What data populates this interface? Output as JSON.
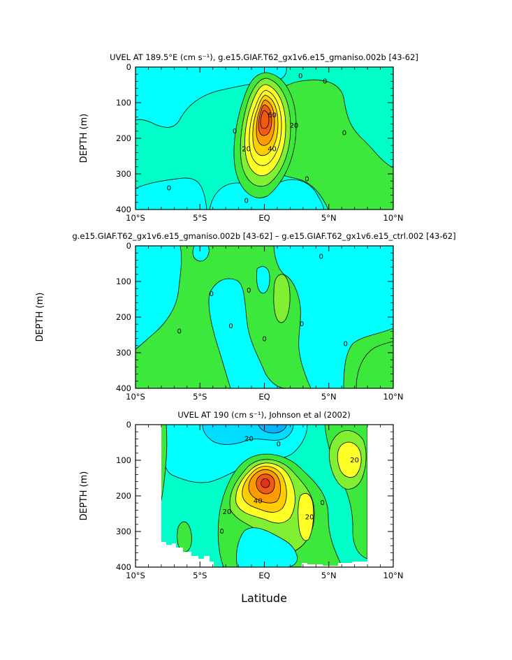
{
  "chart_data": [
    {
      "type": "contour",
      "title": "UVEL AT 189.5°E (cm s⁻¹), g.e15.GIAF.T62_gx1v6.e15_gmaniso.002b [43-62]",
      "ylabel": "DEPTH (m)",
      "xlabel": "",
      "xlim": [
        -10,
        10
      ],
      "ylim": [
        400,
        0
      ],
      "x_ticks": [
        -10,
        -5,
        0,
        5,
        10
      ],
      "x_tick_labels": [
        "10°S",
        "5°S",
        "EQ",
        "5°N",
        "10°N"
      ],
      "y_ticks": [
        0,
        100,
        200,
        300,
        400
      ],
      "y_tick_labels": [
        "0",
        "100",
        "200",
        "300",
        "400"
      ],
      "contour_labels": [
        {
          "text": "0",
          "lat": 2.8,
          "depth": 25
        },
        {
          "text": "0",
          "lat": 4.7,
          "depth": 40
        },
        {
          "text": "0",
          "lat": -2.3,
          "depth": 180
        },
        {
          "text": "0",
          "lat": 6.2,
          "depth": 185
        },
        {
          "text": "0",
          "lat": -7.4,
          "depth": 340
        },
        {
          "text": "0",
          "lat": 3.3,
          "depth": 315
        },
        {
          "text": "0",
          "lat": -1.4,
          "depth": 375
        },
        {
          "text": "60",
          "lat": 0.6,
          "depth": 135
        },
        {
          "text": "20",
          "lat": 2.3,
          "depth": 165
        },
        {
          "text": "20",
          "lat": -1.4,
          "depth": 230
        },
        {
          "text": "40",
          "lat": 0.6,
          "depth": 230
        }
      ],
      "colors": {
        "c1": "#00ffff",
        "c2": "#00ffc8",
        "c3": "#3ce83c",
        "c4": "#82f032",
        "c5": "#ffff28",
        "c6": "#ffcd00",
        "c7": "#ff9b00",
        "c8": "#f05a14"
      }
    },
    {
      "type": "contour",
      "title": "g.e15.GIAF.T62_gx1v6.e15_gmaniso.002b [43-62] – g.e15.GIAF.T62_gx1v6.e15_ctrl.002 [43-62]",
      "ylabel": "DEPTH (m)",
      "xlabel": "",
      "xlim": [
        -10,
        10
      ],
      "ylim": [
        400,
        0
      ],
      "x_ticks": [
        -10,
        -5,
        0,
        5,
        10
      ],
      "x_tick_labels": [
        "10°S",
        "5°S",
        "EQ",
        "5°N",
        "10°N"
      ],
      "y_ticks": [
        0,
        100,
        200,
        300,
        400
      ],
      "y_tick_labels": [
        "0",
        "100",
        "200",
        "300",
        "400"
      ],
      "contour_labels": [
        {
          "text": "0",
          "lat": 4.4,
          "depth": 30
        },
        {
          "text": "0",
          "lat": -4.1,
          "depth": 135
        },
        {
          "text": "0",
          "lat": -1.2,
          "depth": 125
        },
        {
          "text": "0",
          "lat": -2.6,
          "depth": 225
        },
        {
          "text": "0",
          "lat": -6.6,
          "depth": 240
        },
        {
          "text": "0",
          "lat": 2.9,
          "depth": 220
        },
        {
          "text": "0",
          "lat": 0.0,
          "depth": 262
        },
        {
          "text": "0",
          "lat": 6.3,
          "depth": 275
        }
      ]
    },
    {
      "type": "contour",
      "title": "UVEL AT 190 (cm s⁻¹), Johnson et al (2002)",
      "ylabel": "DEPTH (m)",
      "xlabel": "Latitude",
      "xlim": [
        -10,
        10
      ],
      "ylim": [
        400,
        0
      ],
      "x_ticks": [
        -10,
        -5,
        0,
        5,
        10
      ],
      "x_tick_labels": [
        "10°S",
        "5°S",
        "EQ",
        "5°N",
        "10°N"
      ],
      "y_ticks": [
        0,
        100,
        200,
        300,
        400
      ],
      "y_tick_labels": [
        "0",
        "100",
        "200",
        "300",
        "400"
      ],
      "data_lat_range": [
        -8,
        8
      ],
      "contour_labels": [
        {
          "text": "20",
          "lat": -1.2,
          "depth": 40
        },
        {
          "text": "20",
          "lat": 7.0,
          "depth": 100
        },
        {
          "text": "20",
          "lat": -2.9,
          "depth": 245
        },
        {
          "text": "40",
          "lat": -0.5,
          "depth": 215
        },
        {
          "text": "20",
          "lat": 3.5,
          "depth": 260
        },
        {
          "text": "0",
          "lat": -3.3,
          "depth": 300
        },
        {
          "text": "0",
          "lat": 1.1,
          "depth": 55
        },
        {
          "text": "0",
          "lat": 4.5,
          "depth": 220
        }
      ]
    }
  ]
}
